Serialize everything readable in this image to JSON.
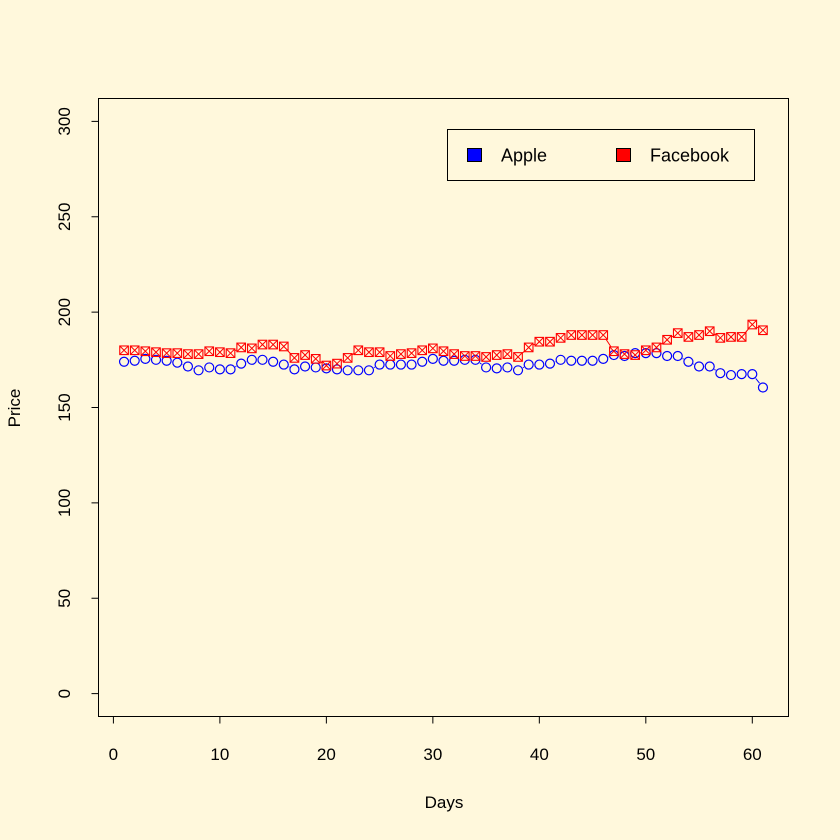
{
  "chart_data": {
    "type": "line",
    "title": "",
    "xlabel": "Days",
    "ylabel": "Price",
    "xlim": [
      -1.4,
      63.4
    ],
    "ylim": [
      -12,
      312
    ],
    "x_ticks": [
      0,
      10,
      20,
      30,
      40,
      50,
      60
    ],
    "y_ticks": [
      0,
      50,
      100,
      150,
      200,
      250,
      300
    ],
    "x_tick_labels": [
      "0",
      "10",
      "20",
      "30",
      "40",
      "50",
      "60"
    ],
    "y_tick_labels": [
      "0",
      "50",
      "100",
      "150",
      "200",
      "250",
      "300"
    ],
    "grid": false,
    "legend_position": "top-right",
    "background": "#FFF8DC",
    "x": [
      1,
      2,
      3,
      4,
      5,
      6,
      7,
      8,
      9,
      10,
      11,
      12,
      13,
      14,
      15,
      16,
      17,
      18,
      19,
      20,
      21,
      22,
      23,
      24,
      25,
      26,
      27,
      28,
      29,
      30,
      31,
      32,
      33,
      34,
      35,
      36,
      37,
      38,
      39,
      40,
      41,
      42,
      43,
      44,
      45,
      46,
      47,
      48,
      49,
      50,
      51,
      52,
      53,
      54,
      55,
      56,
      57,
      58,
      59,
      60,
      61
    ],
    "series": [
      {
        "name": "Apple",
        "color": "#0000FF",
        "marker": "circle",
        "values": [
          174,
          174.5,
          175.5,
          175,
          174.5,
          173.5,
          171.5,
          169.5,
          171,
          170,
          170,
          173,
          175,
          175,
          174,
          172.5,
          170,
          171.5,
          171,
          170.5,
          170,
          169.5,
          169.5,
          169.5,
          172.5,
          172.5,
          172.5,
          172.5,
          174,
          175.5,
          174.5,
          174.5,
          175,
          175,
          171,
          170.5,
          171,
          169.5,
          172.5,
          172.5,
          173,
          175,
          174.5,
          174.5,
          174.5,
          175.5,
          177.5,
          177,
          178.5,
          178.5,
          178.5,
          177,
          177,
          174,
          171.5,
          171.5,
          168,
          167,
          167.5,
          167.5,
          160.5
        ]
      },
      {
        "name": "Facebook",
        "color": "#FF0000",
        "marker": "square-x",
        "values": [
          180,
          180,
          179.5,
          179,
          178.5,
          178.5,
          178,
          178,
          179.5,
          179,
          178.5,
          181.5,
          181,
          183,
          183,
          182,
          176,
          177.5,
          175.5,
          172,
          173,
          176,
          180,
          179,
          179,
          177,
          178,
          178.5,
          180,
          181,
          179.5,
          178,
          177,
          177,
          176.5,
          177.5,
          178,
          176.5,
          181.5,
          184.5,
          184.5,
          186.5,
          188,
          188,
          188,
          188,
          179.5,
          178,
          177.5,
          180,
          181.5,
          185.5,
          189,
          187,
          188,
          190,
          186.5,
          187,
          187,
          193.5,
          190.5
        ]
      }
    ]
  }
}
